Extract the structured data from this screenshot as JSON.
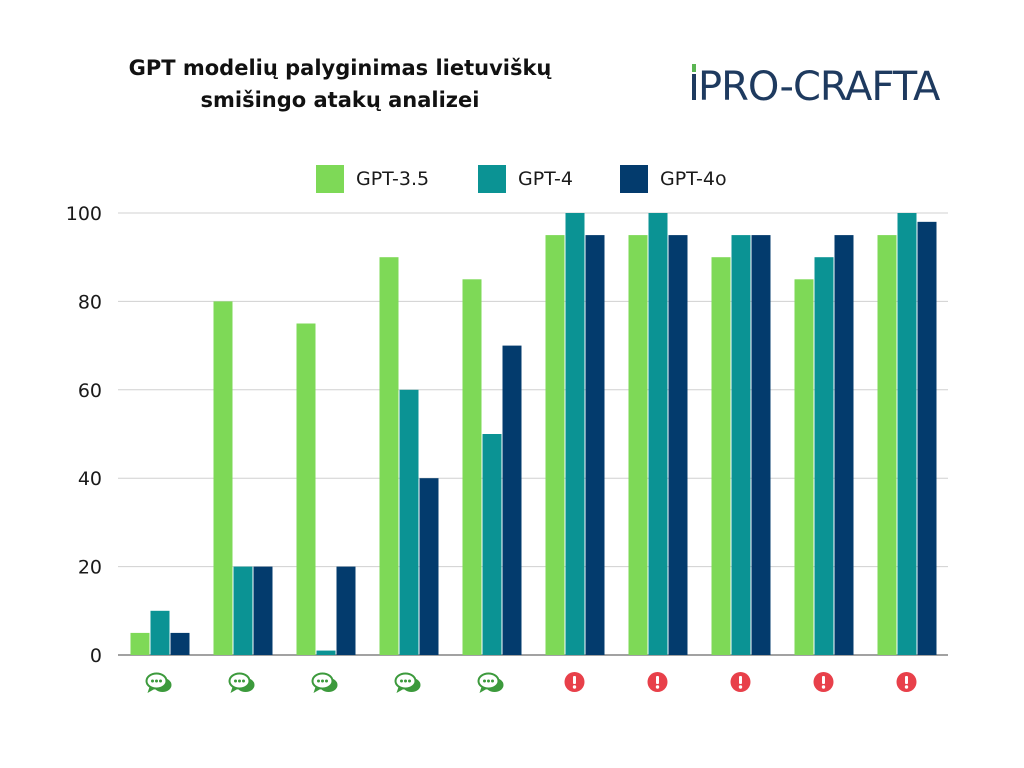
{
  "title_lines": [
    "GPT modelių palyginimas lietuviškų",
    "smišingo atakų analizei"
  ],
  "logo": {
    "text": "PRO-CRAFTA",
    "colors": {
      "text": "#1e3a5f",
      "accent": "#5ab552"
    }
  },
  "colors": {
    "gpt35": "#7ed957",
    "gpt4": "#0b9394",
    "gpt4o": "#033b6d",
    "grid": "#d0d0d0",
    "axis": "#444444",
    "chat_icon": "#3c9a3c",
    "alert_icon": "#e8404a"
  },
  "chart_data": {
    "type": "bar",
    "title": "GPT modelių palyginimas lietuviškų smišingo atakų analizei",
    "xlabel": "",
    "ylabel": "",
    "ylim": [
      0,
      100
    ],
    "yticks": [
      0,
      20,
      40,
      60,
      80,
      100
    ],
    "grid": true,
    "legend_position": "top",
    "categories": [
      "chat-icon",
      "chat-icon",
      "chat-icon",
      "chat-icon",
      "chat-icon",
      "alert-icon",
      "alert-icon",
      "alert-icon",
      "alert-icon",
      "alert-icon"
    ],
    "series": [
      {
        "name": "GPT-3.5",
        "color": "#7ed957",
        "values": [
          5,
          80,
          75,
          90,
          85,
          95,
          95,
          90,
          85,
          95
        ]
      },
      {
        "name": "GPT-4",
        "color": "#0b9394",
        "values": [
          10,
          20,
          1,
          60,
          50,
          100,
          100,
          95,
          90,
          100
        ]
      },
      {
        "name": "GPT-4o",
        "color": "#033b6d",
        "values": [
          5,
          20,
          20,
          40,
          70,
          95,
          95,
          95,
          95,
          98
        ]
      }
    ]
  }
}
